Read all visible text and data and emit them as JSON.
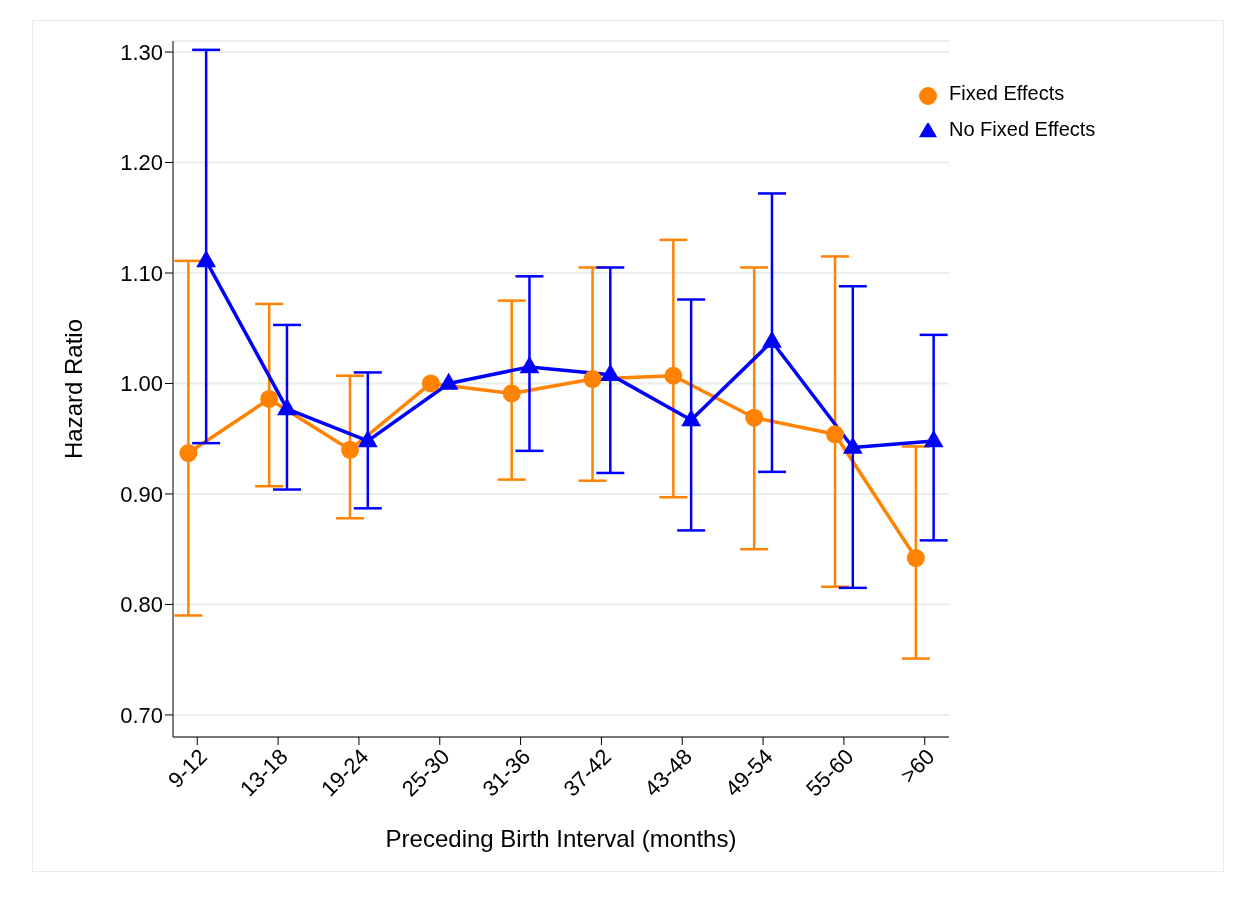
{
  "chart_data": {
    "type": "line",
    "xlabel": "Preceding Birth Interval (months)",
    "ylabel": "Hazard Ratio",
    "categories": [
      "9-12",
      "13-18",
      "19-24",
      "25-30",
      "31-36",
      "37-42",
      "43-48",
      "49-54",
      "55-60",
      ">60"
    ],
    "series": [
      {
        "name": "Fixed Effects",
        "color": "#ff8200",
        "marker": "circle",
        "values": [
          0.937,
          0.986,
          0.94,
          1.0,
          0.991,
          1.004,
          1.007,
          0.969,
          0.954,
          0.842
        ],
        "errors": [
          [
            0.79,
            1.111
          ],
          [
            0.907,
            1.072
          ],
          [
            0.878,
            1.007
          ],
          null,
          [
            0.913,
            1.075
          ],
          [
            0.912,
            1.105
          ],
          [
            0.897,
            1.13
          ],
          [
            0.85,
            1.105
          ],
          [
            0.816,
            1.115
          ],
          [
            0.751,
            0.943
          ]
        ]
      },
      {
        "name": "No Fixed Effects",
        "color": "#0000ff",
        "marker": "triangle",
        "values": [
          1.111,
          0.977,
          0.948,
          1.0,
          1.015,
          1.008,
          0.967,
          1.038,
          0.942,
          0.948
        ],
        "errors": [
          [
            0.946,
            1.302
          ],
          [
            0.904,
            1.053
          ],
          [
            0.887,
            1.01
          ],
          null,
          [
            0.939,
            1.097
          ],
          [
            0.919,
            1.105
          ],
          [
            0.867,
            1.076
          ],
          [
            0.92,
            1.172
          ],
          [
            0.815,
            1.088
          ],
          [
            0.858,
            1.044
          ]
        ]
      }
    ],
    "ylim": [
      0.68,
      1.31
    ],
    "yticks": [
      {
        "value": 0.7,
        "label": "0.70"
      },
      {
        "value": 0.8,
        "label": "0.80"
      },
      {
        "value": 0.9,
        "label": "0.90"
      },
      {
        "value": 1.0,
        "label": "1.00"
      },
      {
        "value": 1.1,
        "label": "1.10"
      },
      {
        "value": 1.2,
        "label": "1.20"
      },
      {
        "value": 1.3,
        "label": "1.30"
      }
    ],
    "grid": "y",
    "legend": "top right",
    "line_style": "solid"
  }
}
